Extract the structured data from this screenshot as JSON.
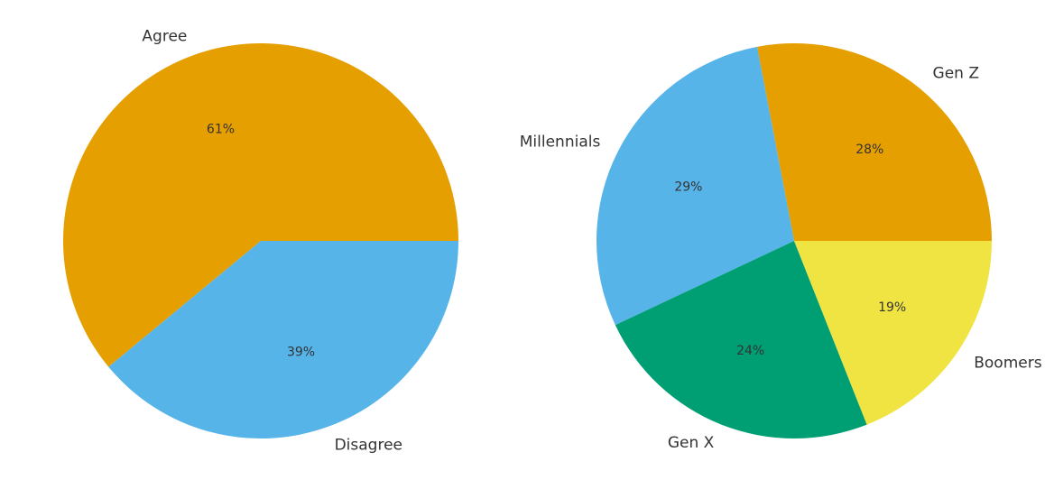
{
  "chart_data": [
    {
      "type": "pie",
      "title": "",
      "labels": [
        "Agree",
        "Disagree"
      ],
      "values": [
        61,
        39
      ],
      "value_labels": [
        "61%",
        "39%"
      ],
      "colors": [
        "#E69F00",
        "#56B4E9"
      ],
      "start_angle": 0,
      "direction": "counterclockwise"
    },
    {
      "type": "pie",
      "title": "",
      "labels": [
        "Gen Z",
        "Millennials",
        "Gen X",
        "Boomers"
      ],
      "values": [
        28,
        29,
        24,
        19
      ],
      "value_labels": [
        "28%",
        "29%",
        "24%",
        "19%"
      ],
      "colors": [
        "#E69F00",
        "#56B4E9",
        "#009E73",
        "#F0E442"
      ],
      "start_angle": 0,
      "direction": "counterclockwise"
    }
  ]
}
